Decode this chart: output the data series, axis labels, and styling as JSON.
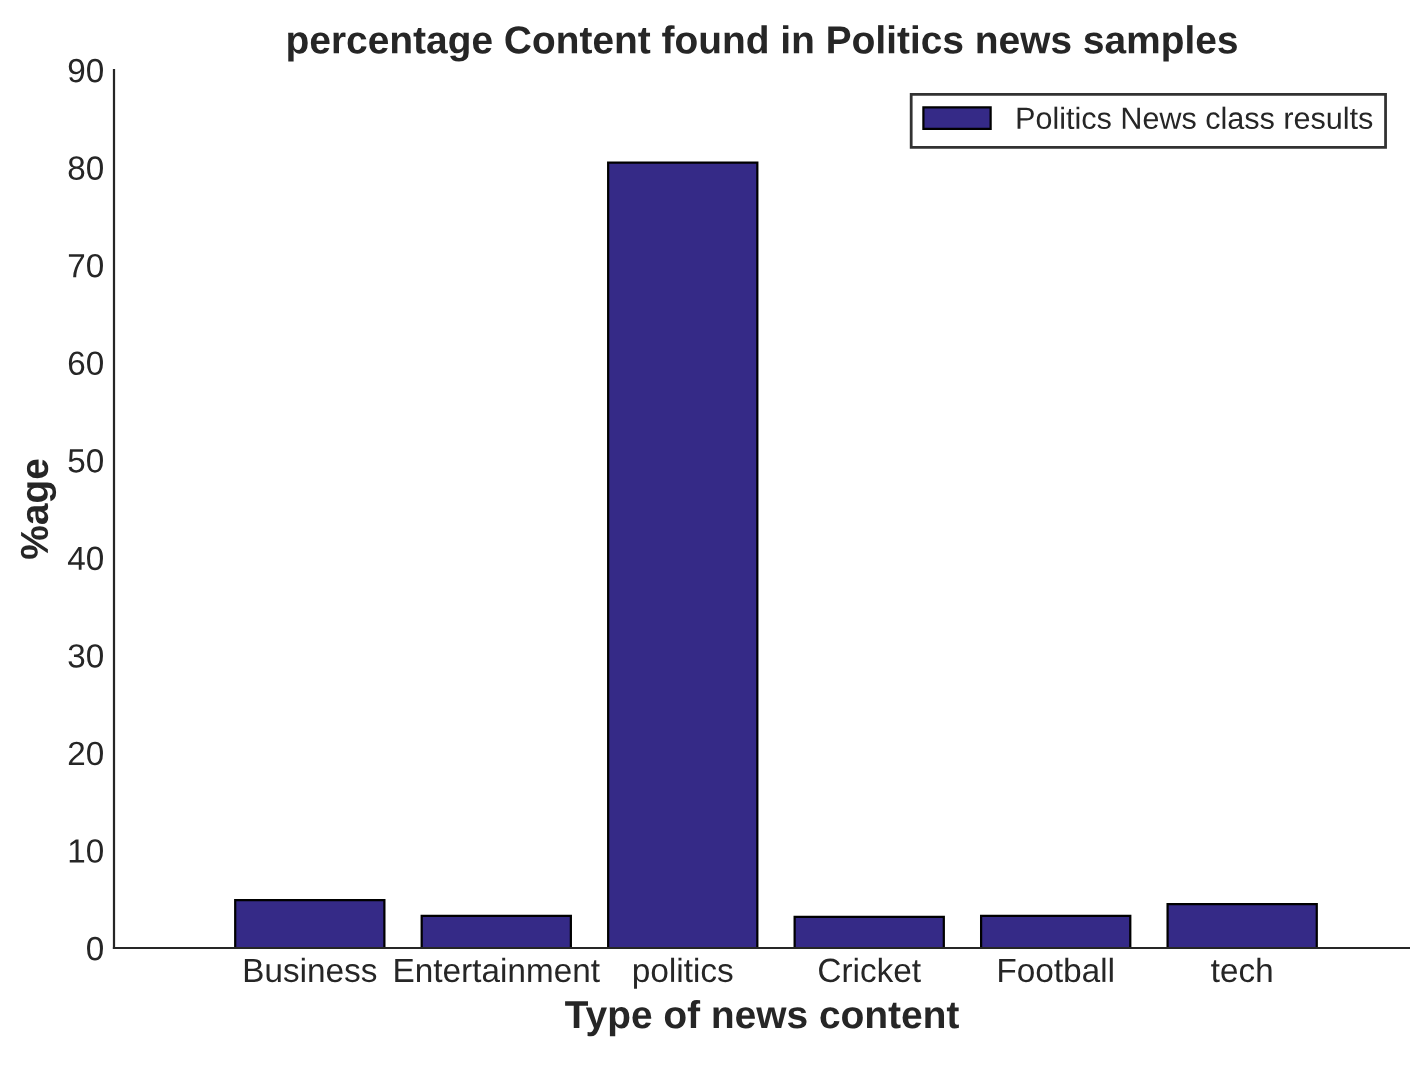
{
  "chart_data": {
    "type": "bar",
    "title": "percentage Content found in Politics news samples",
    "xlabel": "Type of news content",
    "ylabel": "%age",
    "categories": [
      "Business",
      "Entertainment",
      "politics",
      "Cricket",
      "Football",
      "tech"
    ],
    "series": [
      {
        "name": "Politics News class results",
        "color": "#352a87",
        "values": [
          4.9,
          3.3,
          80.5,
          3.2,
          3.3,
          4.5
        ]
      }
    ],
    "ylim": [
      0,
      90
    ],
    "yticks": [
      0,
      10,
      20,
      30,
      40,
      50,
      60,
      70,
      80,
      90
    ],
    "grid": false,
    "legend": "top right"
  }
}
